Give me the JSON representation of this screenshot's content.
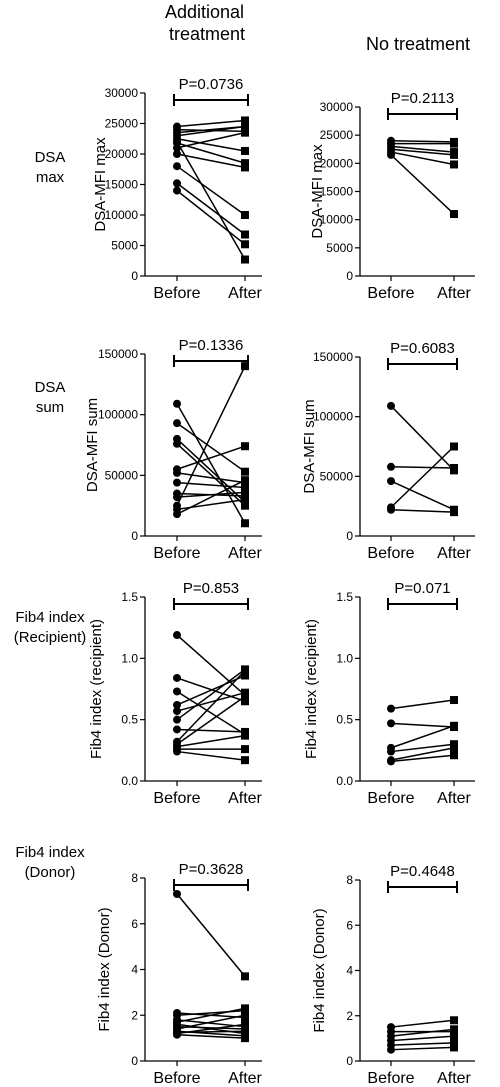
{
  "column_headers": [
    "Additional\ntreatment",
    "No treatment"
  ],
  "row_labels": [
    "DSA\nmax",
    "DSA\nsum",
    "Fib4 index\n(Recipient)",
    "Fib4 index\n(Donor)"
  ],
  "chart_data": [
    {
      "type": "line",
      "title": "",
      "xlabel": "",
      "ylabel": "DSA-MFI max",
      "categories": [
        "Before",
        "After"
      ],
      "ylim": [
        0,
        30000
      ],
      "yticks": [
        "0",
        "5000",
        "10000",
        "15000",
        "20000",
        "25000",
        "30000"
      ],
      "pvalue": "P=0.0736",
      "pairs": [
        [
          24500,
          25500
        ],
        [
          24000,
          23700
        ],
        [
          23500,
          24500
        ],
        [
          23000,
          24500
        ],
        [
          22500,
          20500
        ],
        [
          21800,
          18500
        ],
        [
          21000,
          23500
        ],
        [
          18000,
          10000
        ],
        [
          15200,
          6800
        ],
        [
          14000,
          5200
        ],
        [
          22000,
          2700
        ],
        [
          20000,
          17800
        ]
      ]
    },
    {
      "type": "line",
      "title": "",
      "xlabel": "",
      "ylabel": "DSA-MFI max",
      "categories": [
        "Before",
        "After"
      ],
      "ylim": [
        0,
        30000
      ],
      "yticks": [
        "0",
        "5000",
        "10000",
        "15000",
        "20000",
        "25000",
        "30000"
      ],
      "pvalue": "P=0.2113",
      "pairs": [
        [
          24000,
          23800
        ],
        [
          23500,
          23500
        ],
        [
          23000,
          22000
        ],
        [
          22500,
          21500
        ],
        [
          22000,
          19800
        ],
        [
          21500,
          11000
        ]
      ]
    },
    {
      "type": "line",
      "title": "",
      "xlabel": "",
      "ylabel": "DSA-MFI sum",
      "categories": [
        "Before",
        "After"
      ],
      "ylim": [
        0,
        150000
      ],
      "yticks": [
        "0",
        "50000",
        "100000",
        "150000"
      ],
      "pvalue": "P=0.1336",
      "pairs": [
        [
          109000,
          10500
        ],
        [
          93000,
          53000
        ],
        [
          80000,
          28000
        ],
        [
          76000,
          25000
        ],
        [
          55000,
          74000
        ],
        [
          52000,
          44000
        ],
        [
          44000,
          40000
        ],
        [
          35000,
          33000
        ],
        [
          32000,
          36000
        ],
        [
          22000,
          30000
        ],
        [
          18000,
          46000
        ],
        [
          25000,
          140000
        ]
      ]
    },
    {
      "type": "line",
      "title": "",
      "xlabel": "",
      "ylabel": "DSA-MFI sum",
      "categories": [
        "Before",
        "After"
      ],
      "ylim": [
        0,
        150000
      ],
      "yticks": [
        "0",
        "50000",
        "100000",
        "150000"
      ],
      "pvalue": "P=0.6083",
      "pairs": [
        [
          109000,
          55000
        ],
        [
          58000,
          57000
        ],
        [
          46000,
          22000
        ],
        [
          24000,
          75000
        ],
        [
          22000,
          20000
        ]
      ]
    },
    {
      "type": "line",
      "title": "",
      "xlabel": "",
      "ylabel": "Fib4 index (recipient)",
      "categories": [
        "Before",
        "After"
      ],
      "ylim": [
        0,
        1.5
      ],
      "yticks": [
        "0.0",
        "0.5",
        "1.0",
        "1.5"
      ],
      "pvalue": "P=0.853",
      "pairs": [
        [
          1.19,
          0.7
        ],
        [
          0.84,
          0.65
        ],
        [
          0.73,
          0.38
        ],
        [
          0.62,
          0.86
        ],
        [
          0.57,
          0.72
        ],
        [
          0.5,
          0.91
        ],
        [
          0.42,
          0.4
        ],
        [
          0.3,
          0.69
        ],
        [
          0.28,
          0.37
        ],
        [
          0.26,
          0.26
        ],
        [
          0.24,
          0.17
        ],
        [
          0.32,
          0.9
        ]
      ]
    },
    {
      "type": "line",
      "title": "",
      "xlabel": "",
      "ylabel": "Fib4 index (recipient)",
      "categories": [
        "Before",
        "After"
      ],
      "ylim": [
        0,
        1.5
      ],
      "yticks": [
        "0.0",
        "0.5",
        "1.0",
        "1.5"
      ],
      "pvalue": "P=0.071",
      "pairs": [
        [
          0.59,
          0.66
        ],
        [
          0.47,
          0.44
        ],
        [
          0.27,
          0.45
        ],
        [
          0.24,
          0.3
        ],
        [
          0.17,
          0.27
        ],
        [
          0.16,
          0.21
        ]
      ]
    },
    {
      "type": "line",
      "title": "",
      "xlabel": "",
      "ylabel": "Fib4 index (Donor)",
      "categories": [
        "Before",
        "After"
      ],
      "ylim": [
        0,
        8
      ],
      "yticks": [
        "0",
        "2",
        "4",
        "6",
        "8"
      ],
      "pvalue": "P=0.3628",
      "pairs": [
        [
          7.3,
          3.7
        ],
        [
          2.1,
          1.9
        ],
        [
          2.0,
          2.2
        ],
        [
          1.8,
          1.5
        ],
        [
          1.7,
          2.3
        ],
        [
          1.6,
          1.2
        ],
        [
          1.5,
          1.4
        ],
        [
          1.4,
          2.0
        ],
        [
          1.3,
          1.1
        ],
        [
          1.2,
          1.6
        ],
        [
          1.25,
          1.3
        ],
        [
          1.15,
          1.0
        ]
      ]
    },
    {
      "type": "line",
      "title": "",
      "xlabel": "",
      "ylabel": "Fib4 index (Donor)",
      "categories": [
        "Before",
        "After"
      ],
      "ylim": [
        0,
        8
      ],
      "yticks": [
        "0",
        "2",
        "4",
        "6",
        "8"
      ],
      "pvalue": "P=0.4648",
      "pairs": [
        [
          1.5,
          1.8
        ],
        [
          1.3,
          1.3
        ],
        [
          1.1,
          1.4
        ],
        [
          0.9,
          1.1
        ],
        [
          0.7,
          0.8
        ],
        [
          0.5,
          0.6
        ]
      ]
    }
  ]
}
